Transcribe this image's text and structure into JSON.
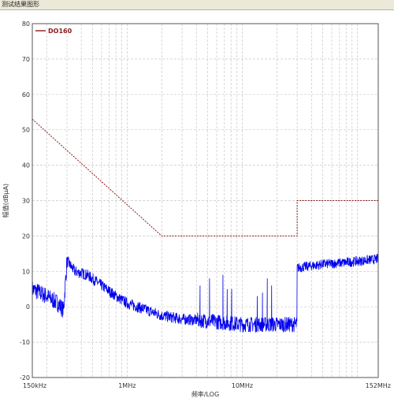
{
  "window": {
    "title": "测试结果图形"
  },
  "chart_data": {
    "type": "line",
    "xscale": "log",
    "xlim_mhz": [
      0.15,
      152
    ],
    "ylim": [
      -20,
      80
    ],
    "yticks": [
      -20,
      -10,
      0,
      10,
      20,
      30,
      40,
      50,
      60,
      70,
      80
    ],
    "xtick_labels": [
      {
        "f": 0.15,
        "label": "150kHz"
      },
      {
        "f": 1,
        "label": "1MHz"
      },
      {
        "f": 10,
        "label": "10MHz"
      },
      {
        "f": 152,
        "label": "152MHz"
      }
    ],
    "xlabel": "频率/LOG",
    "ylabel": "幅值(dBμA)",
    "grid": true,
    "legend": {
      "placement": "top-left",
      "entries": [
        "DO160"
      ]
    },
    "colors": {
      "limit": "#8b1a1a",
      "measurement": "#0000ee",
      "grid": "#c8c8c8"
    },
    "series": [
      {
        "name": "DO160",
        "style": "dashed",
        "points": [
          [
            0.15,
            53
          ],
          [
            2.0,
            20
          ],
          [
            30,
            20
          ],
          [
            30,
            30
          ],
          [
            152,
            30
          ]
        ]
      },
      {
        "style": "noisy",
        "points": [
          [
            0.15,
            5
          ],
          [
            0.2,
            3
          ],
          [
            0.25,
            1
          ],
          [
            0.28,
            -1
          ],
          [
            0.3,
            13
          ],
          [
            0.35,
            10
          ],
          [
            0.45,
            9
          ],
          [
            0.6,
            6
          ],
          [
            0.8,
            3
          ],
          [
            1.0,
            1
          ],
          [
            1.5,
            -1
          ],
          [
            2,
            -2.5
          ],
          [
            3,
            -3.5
          ],
          [
            5,
            -4
          ],
          [
            7,
            -4.5
          ],
          [
            10,
            -5
          ],
          [
            15,
            -5
          ],
          [
            20,
            -5
          ],
          [
            29.9,
            -5
          ],
          [
            30,
            11
          ],
          [
            50,
            12
          ],
          [
            80,
            12.5
          ],
          [
            110,
            13
          ],
          [
            152,
            13.5
          ]
        ],
        "spikes": [
          {
            "f": 4.3,
            "peak": 6
          },
          {
            "f": 5.2,
            "peak": 8
          },
          {
            "f": 6.8,
            "peak": 9
          },
          {
            "f": 7.4,
            "peak": 5
          },
          {
            "f": 8.1,
            "peak": 5
          },
          {
            "f": 13.5,
            "peak": 3
          },
          {
            "f": 15,
            "peak": 4
          },
          {
            "f": 16.5,
            "peak": 8
          },
          {
            "f": 18,
            "peak": 6
          }
        ]
      }
    ]
  }
}
